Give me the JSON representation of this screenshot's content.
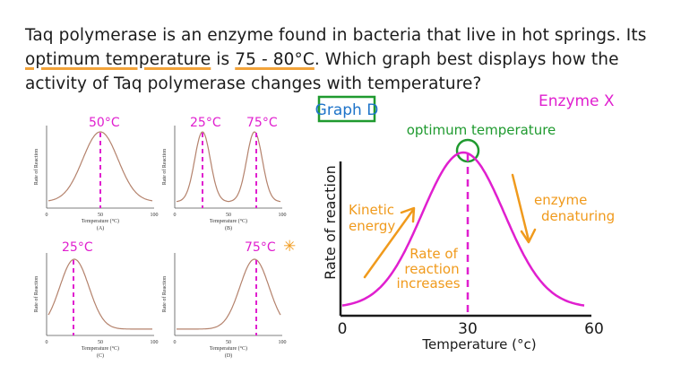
{
  "question": {
    "line1": "Taq polymerase is an enzyme found in bacteria that live in hot springs. Its",
    "line2_highlight": "optimum temperature",
    "line2_mid": " is ",
    "line2_value": "75 - 80°C",
    "line2_rest": ". Which graph best displays how the",
    "line3": "activity of Taq polymerase changes with temperature?"
  },
  "colors": {
    "ink": "#1b1b1b",
    "magenta": "#e01fcf",
    "green": "#1f9a2f",
    "orange": "#f09a1c",
    "blue": "#1d73c9",
    "curve_small": "#b4826c"
  },
  "small_graphs": {
    "ylabel": "Rate of Reaction",
    "xlabel": "Temperature (°C)",
    "ticks": [
      "0",
      "50",
      "100"
    ],
    "items": [
      {
        "letter": "(A)",
        "annotation": "50°C"
      },
      {
        "letter": "(B)",
        "annotation_left": "25°C",
        "annotation_right": "75°C"
      },
      {
        "letter": "(C)",
        "annotation": "25°C"
      },
      {
        "letter": "(D)",
        "annotation": "75°C",
        "mark": "✳"
      }
    ]
  },
  "big_graph": {
    "title": "Graph D",
    "enzyme_label": "Enzyme X",
    "optimum_label": "optimum temperature",
    "ylabel": "Rate of reaction",
    "xlabel": "Temperature (°c)",
    "ticks": [
      "0",
      "30",
      "60"
    ],
    "kinetic_line1": "Kinetic",
    "kinetic_line2": "energy",
    "rate_line1": "Rate of",
    "rate_line2": "reaction",
    "rate_line3": "increases",
    "denat_line1": "enzyme",
    "denat_line2": "denaturing"
  },
  "chart_data": [
    {
      "type": "line",
      "title": "(A)",
      "xlabel": "Temperature (°C)",
      "ylabel": "Rate of Reaction",
      "xlim": [
        0,
        100
      ],
      "peaks": [
        50
      ],
      "annotation": "50°C"
    },
    {
      "type": "line",
      "title": "(B)",
      "xlabel": "Temperature (°C)",
      "ylabel": "Rate of Reaction",
      "xlim": [
        0,
        100
      ],
      "peaks": [
        25,
        75
      ],
      "annotation": [
        "25°C",
        "75°C"
      ]
    },
    {
      "type": "line",
      "title": "(C)",
      "xlabel": "Temperature (°C)",
      "ylabel": "Rate of Reaction",
      "xlim": [
        0,
        100
      ],
      "peaks": [
        25
      ],
      "annotation": "25°C"
    },
    {
      "type": "line",
      "title": "(D)",
      "xlabel": "Temperature (°C)",
      "ylabel": "Rate of Reaction",
      "xlim": [
        0,
        100
      ],
      "peaks": [
        75
      ],
      "annotation": "75°C"
    },
    {
      "type": "line",
      "title": "Graph D",
      "xlabel": "Temperature (°c)",
      "ylabel": "Rate of reaction",
      "xlim": [
        0,
        60
      ],
      "peaks": [
        30
      ],
      "annotation": "optimum temperature"
    }
  ]
}
